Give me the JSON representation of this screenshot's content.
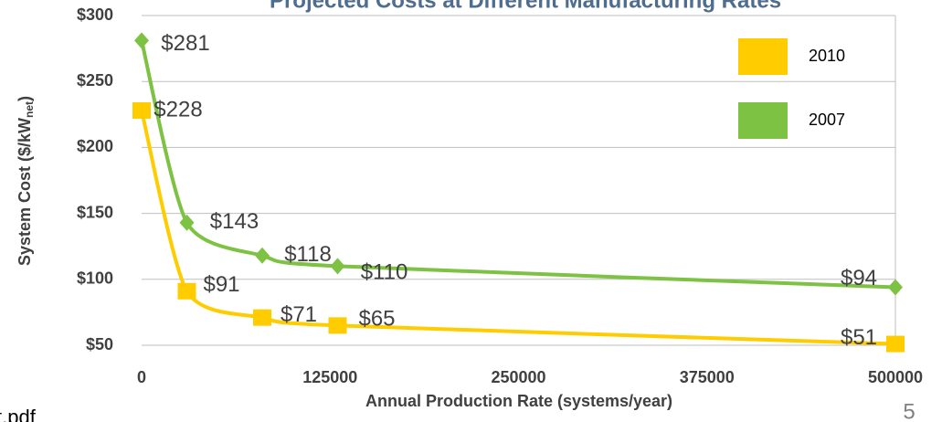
{
  "chart_data": {
    "type": "line",
    "title": "Projected Costs at Different Manufacturing Rates",
    "x_label": "Annual Production Rate (systems/year)",
    "y_label": [
      "System Cost ($/kW",
      "net",
      ")"
    ],
    "x": [
      0,
      30000,
      80000,
      130000,
      500000
    ],
    "series": [
      {
        "name": "2010",
        "color": "#ffcc00",
        "values": [
          228,
          91,
          71,
          65,
          51
        ],
        "value_labels": [
          "$228",
          "$91",
          "$71",
          "$65",
          "$51"
        ]
      },
      {
        "name": "2007",
        "color": "#7dc242",
        "values": [
          281,
          143,
          118,
          110,
          94
        ],
        "value_labels": [
          "$281",
          "$143",
          "$118",
          "$110",
          "$94"
        ]
      }
    ],
    "xlim": [
      0,
      500000
    ],
    "xticks": [
      0,
      125000,
      250000,
      375000,
      500000
    ],
    "ylim": [
      50,
      300
    ],
    "yticks": [
      {
        "value": 50,
        "label": "$50"
      },
      {
        "value": 100,
        "label": "$100"
      },
      {
        "value": 150,
        "label": "$150"
      },
      {
        "value": 200,
        "label": "$200"
      },
      {
        "value": 250,
        "label": "$250"
      },
      {
        "value": 300,
        "label": "$300"
      }
    ],
    "grid": true,
    "legend": "upper right",
    "footer_left": "t.pdf",
    "page_number": "5"
  }
}
